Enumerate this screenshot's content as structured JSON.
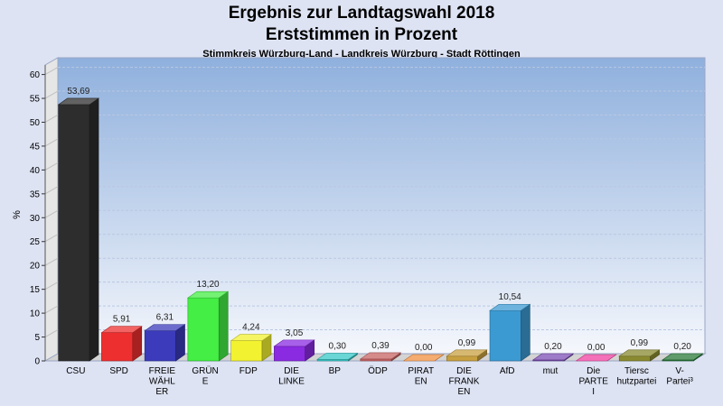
{
  "title": "Ergebnis zur Landtagswahl 2018",
  "subtitle": "Erststimmen in Prozent",
  "subsubtitle": "Stimmkreis Würzburg-Land - Landkreis Würzburg - Stadt Röttingen",
  "chart_data": {
    "type": "bar",
    "title": "Ergebnis zur Landtagswahl 2018",
    "subtitle": "Erststimmen in Prozent",
    "ylabel": "%",
    "xlabel": "",
    "ylim": [
      0,
      62
    ],
    "yticks": [
      0,
      5,
      10,
      15,
      20,
      25,
      30,
      35,
      40,
      45,
      50,
      55,
      60
    ],
    "grid": true,
    "categories": [
      [
        "CSU"
      ],
      [
        "SPD"
      ],
      [
        "FREIE",
        "WÄHL",
        "ER"
      ],
      [
        "GRÜN",
        "E"
      ],
      [
        "FDP"
      ],
      [
        "DIE",
        "LINKE"
      ],
      [
        "BP"
      ],
      [
        "ÖDP"
      ],
      [
        "PIRAT",
        "EN"
      ],
      [
        "DIE",
        "FRANK",
        "EN"
      ],
      [
        "AfD"
      ],
      [
        "mut"
      ],
      [
        "Die",
        "PARTE",
        "I"
      ],
      [
        "Tiersc",
        "hutzpartei"
      ],
      [
        "V-",
        "Partei³"
      ]
    ],
    "values": [
      53.69,
      5.91,
      6.31,
      13.2,
      4.24,
      3.05,
      0.3,
      0.39,
      0.0,
      0.99,
      10.54,
      0.2,
      0.0,
      0.99,
      0.2
    ],
    "value_labels": [
      "53,69",
      "5,91",
      "6,31",
      "13,20",
      "4,24",
      "3,05",
      "0,30",
      "0,39",
      "0,00",
      "0,99",
      "10,54",
      "0,20",
      "0,00",
      "0,99",
      "0,20"
    ],
    "colors": [
      "#2d2d2d",
      "#ee2f2f",
      "#3b3bbb",
      "#44ee44",
      "#f2f230",
      "#8a2be2",
      "#39c8c8",
      "#c86464",
      "#f29040",
      "#c8a040",
      "#3c9ad2",
      "#7d4fb5",
      "#f040a0",
      "#8a8a30",
      "#2a7a3a"
    ]
  }
}
